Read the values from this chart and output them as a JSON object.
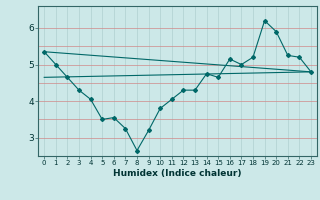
{
  "title": "",
  "xlabel": "Humidex (Indice chaleur)",
  "bg_color": "#cce8e8",
  "line_color": "#006868",
  "xlim": [
    -0.5,
    23.5
  ],
  "ylim": [
    2.5,
    6.6
  ],
  "yticks": [
    3,
    4,
    5,
    6
  ],
  "xticks": [
    0,
    1,
    2,
    3,
    4,
    5,
    6,
    7,
    8,
    9,
    10,
    11,
    12,
    13,
    14,
    15,
    16,
    17,
    18,
    19,
    20,
    21,
    22,
    23
  ],
  "line1_x": [
    0,
    1,
    2,
    3,
    4,
    5,
    6,
    7,
    8,
    9,
    10,
    11,
    12,
    13,
    14,
    15,
    16,
    17,
    18,
    19,
    20,
    21,
    22,
    23
  ],
  "line1_y": [
    5.35,
    5.0,
    4.65,
    4.3,
    4.05,
    3.5,
    3.55,
    3.25,
    2.65,
    3.2,
    3.8,
    4.05,
    4.3,
    4.3,
    4.75,
    4.65,
    5.15,
    5.0,
    5.2,
    6.2,
    5.9,
    5.25,
    5.2,
    4.8
  ],
  "line2_x": [
    0,
    23
  ],
  "line2_y": [
    5.35,
    4.8
  ],
  "line3_x": [
    0,
    23
  ],
  "line3_y": [
    4.65,
    4.8
  ],
  "hgrid_y": [
    3.0,
    3.5,
    4.0,
    4.5,
    5.0,
    5.5,
    6.0
  ],
  "hgrid_color_major": "#d08080",
  "hgrid_color_minor": "#d08080",
  "vgrid_color": "#b8d8d8"
}
